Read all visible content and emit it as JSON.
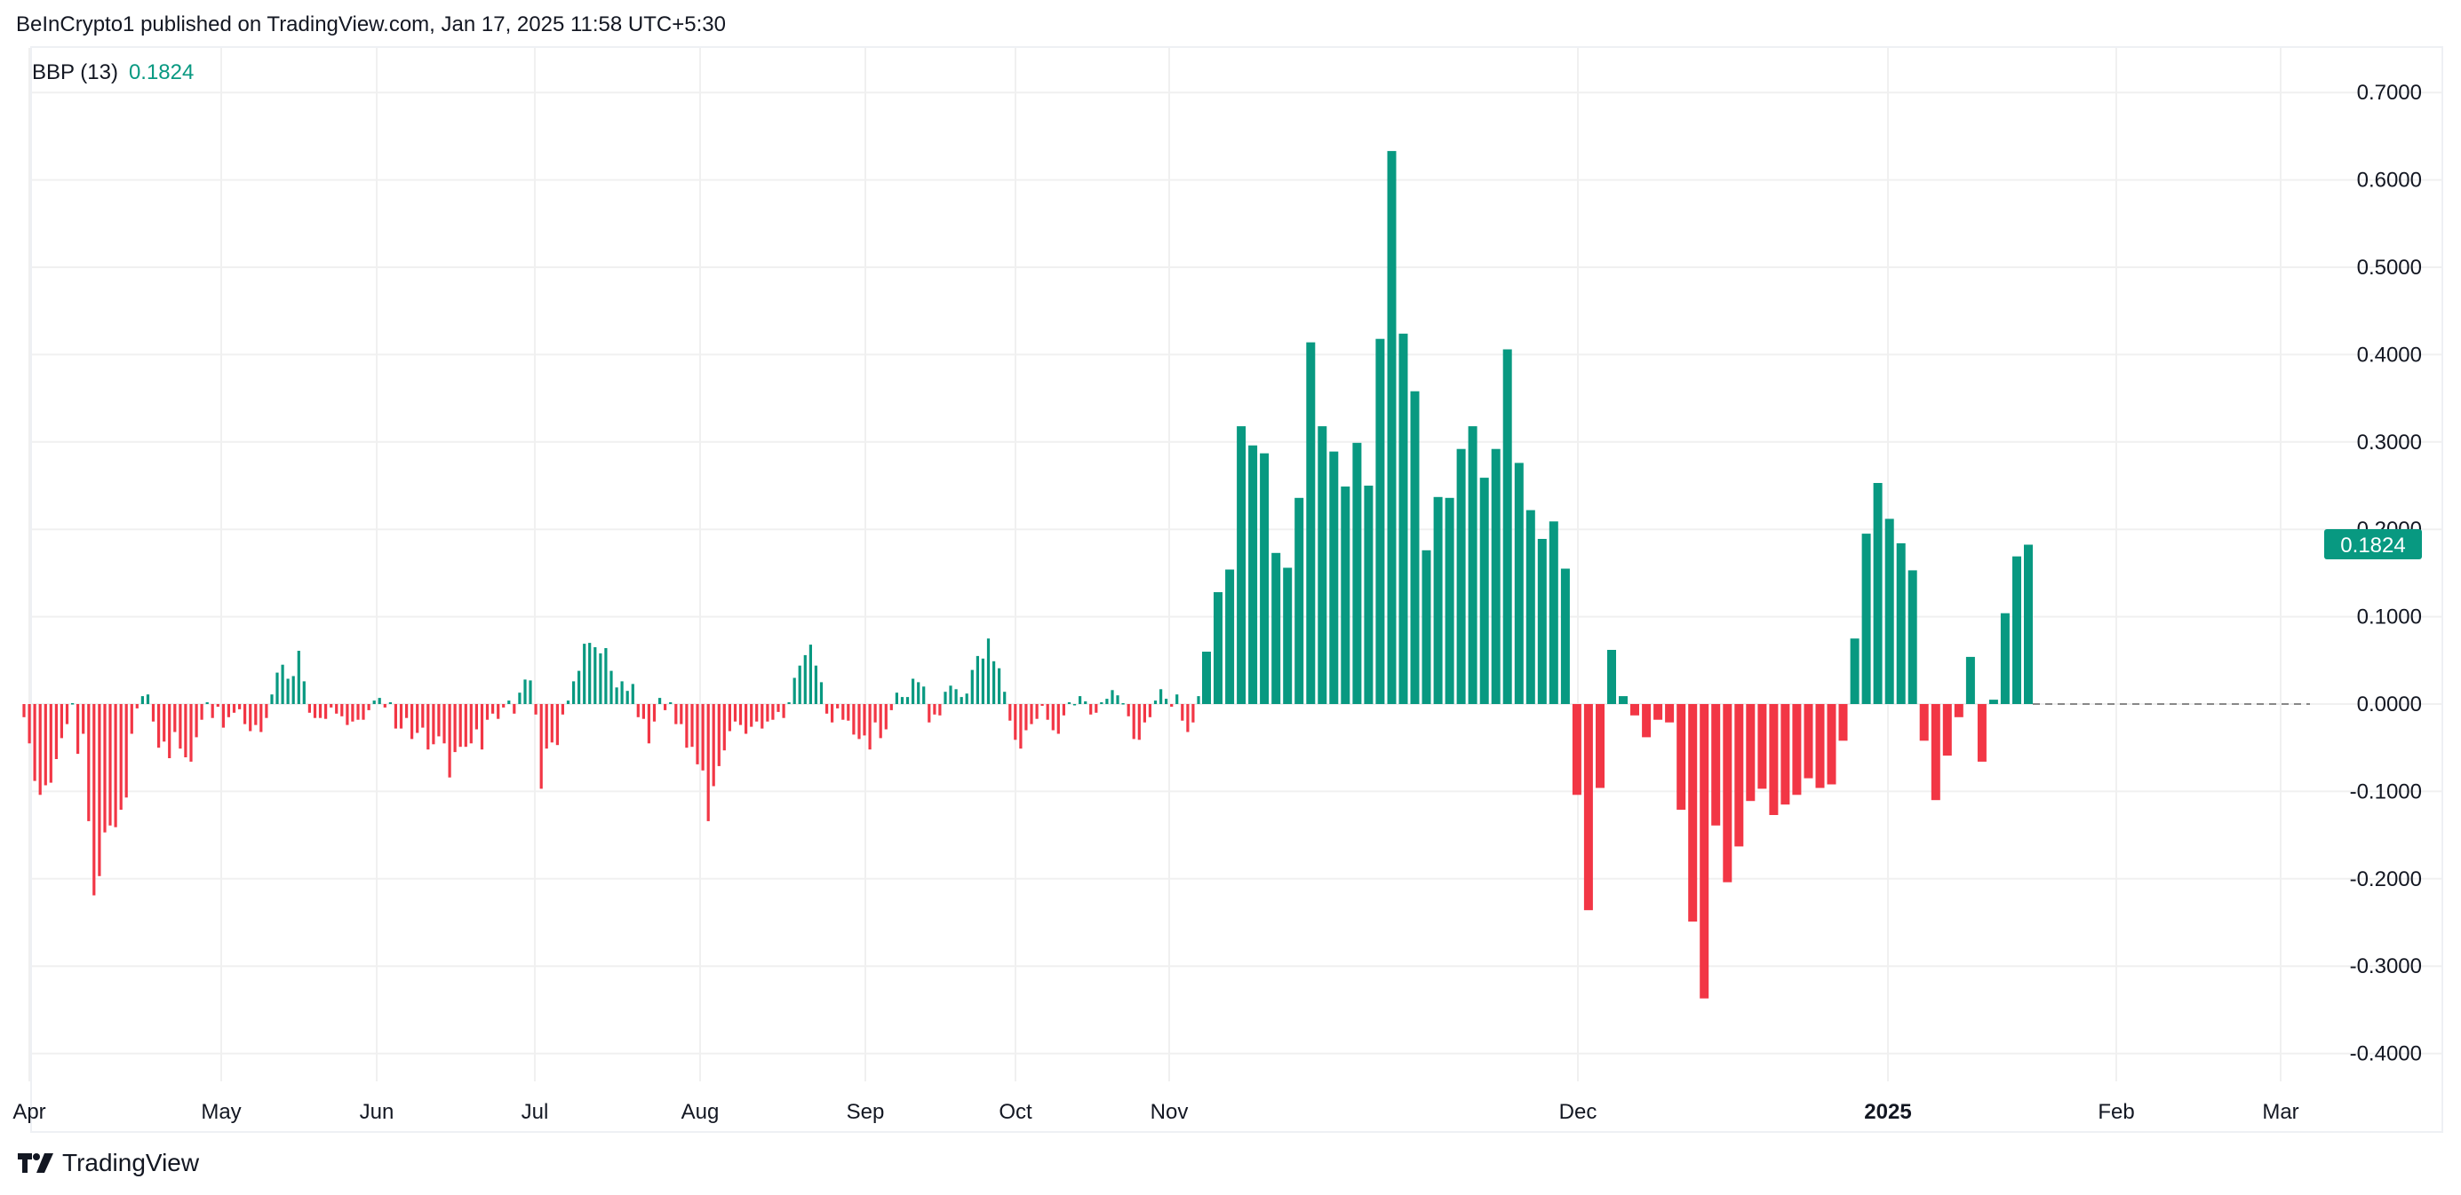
{
  "header": {
    "published": "BeInCrypto1 published on TradingView.com, Jan 17, 2025 11:58 UTC+5:30"
  },
  "legend": {
    "name": "BBP (13)",
    "value": "0.1824"
  },
  "footer": {
    "brand": "TradingView"
  },
  "colors": {
    "positive": "#089981",
    "negative": "#f23645",
    "grid": "#f0f0f0",
    "zero_line": "#888888"
  },
  "chart_data": {
    "type": "bar",
    "title": "",
    "series_label": "BBP (13)",
    "last_value": 0.1824,
    "last_value_label": "0.1824",
    "ylim": [
      -0.4,
      0.7
    ],
    "y_ticks": [
      "0.7000",
      "0.6000",
      "0.5000",
      "0.4000",
      "0.3000",
      "0.2000",
      "0.1000",
      "0.0000",
      "-0.1000",
      "-0.2000",
      "-0.3000",
      "-0.4000"
    ],
    "x_ticks": [
      "Apr",
      "May",
      "Jun",
      "Jul",
      "Aug",
      "Sep",
      "Oct",
      "Nov",
      "Dec",
      "2025",
      "Feb",
      "Mar"
    ],
    "grid": true,
    "values_apr_to_oct": [
      -0.015,
      -0.045,
      -0.088,
      -0.104,
      -0.093,
      -0.09,
      -0.063,
      -0.039,
      -0.023,
      0.001,
      -0.057,
      -0.034,
      -0.134,
      -0.219,
      -0.197,
      -0.147,
      -0.139,
      -0.141,
      -0.121,
      -0.107,
      -0.034,
      -0.005,
      0.009,
      0.011,
      -0.02,
      -0.05,
      -0.043,
      -0.062,
      -0.032,
      -0.051,
      -0.061,
      -0.066,
      -0.038,
      -0.018,
      0.002,
      -0.016,
      -0.003,
      -0.027,
      -0.015,
      -0.01,
      -0.006,
      -0.023,
      -0.031,
      -0.024,
      -0.032,
      -0.016,
      0.011,
      0.036,
      0.045,
      0.029,
      0.032,
      0.061,
      0.026,
      -0.01,
      -0.016,
      -0.016,
      -0.017,
      -0.004,
      -0.011,
      -0.014,
      -0.024,
      -0.02,
      -0.018,
      -0.018,
      -0.007,
      0.004,
      0.007,
      -0.004,
      0.002,
      -0.028,
      -0.028,
      -0.016,
      -0.04,
      -0.033,
      -0.027,
      -0.052,
      -0.046,
      -0.037,
      -0.045,
      -0.084,
      -0.055,
      -0.049,
      -0.049,
      -0.045,
      -0.029,
      -0.052,
      -0.018,
      -0.011,
      -0.017,
      -0.004,
      0.004,
      -0.011,
      0.013,
      0.028,
      0.027,
      -0.012,
      -0.097,
      -0.051,
      -0.044,
      -0.047,
      -0.012,
      0.004,
      0.026,
      0.038,
      0.069,
      0.07,
      0.065,
      0.058,
      0.064,
      0.038,
      0.019,
      0.026,
      0.015,
      0.023,
      -0.015,
      -0.017,
      -0.045,
      -0.02,
      0.007,
      -0.007,
      0.002,
      -0.023,
      -0.023,
      -0.05,
      -0.049,
      -0.069,
      -0.076,
      -0.134,
      -0.094,
      -0.071,
      -0.053,
      -0.031,
      -0.02,
      -0.024,
      -0.034,
      -0.026,
      -0.02,
      -0.028,
      -0.02,
      -0.018,
      -0.009,
      -0.016,
      0.002,
      0.03,
      0.044,
      0.056,
      0.068,
      0.044,
      0.025,
      -0.011,
      -0.021,
      -0.005,
      -0.018,
      -0.019,
      -0.035,
      -0.04,
      -0.036,
      -0.052,
      -0.021,
      -0.039,
      -0.029,
      -0.007,
      0.013,
      0.008,
      0.008,
      0.029,
      0.025,
      0.02,
      -0.021,
      -0.012,
      -0.013,
      0.014,
      0.021,
      0.017,
      0.008,
      0.012,
      0.039,
      0.055,
      0.052,
      0.075,
      0.049,
      0.041,
      0.014,
      -0.019,
      -0.041,
      -0.051,
      -0.03,
      -0.023,
      -0.017,
      -0.002,
      -0.018,
      -0.03,
      -0.034,
      -0.013,
      0.002,
      0,
      0.009,
      0.003,
      -0.012,
      -0.01,
      0.002,
      0.006,
      0.016,
      0.01,
      0.001,
      -0.014,
      -0.04,
      -0.041,
      -0.021,
      -0.015,
      0.004,
      0.017,
      0.006,
      -0.003,
      0.011,
      -0.019,
      -0.032,
      -0.021,
      0.009
    ],
    "values_nov_to_jan": [
      0.06,
      0.128,
      0.154,
      0.318,
      0.296,
      0.287,
      0.173,
      0.156,
      0.236,
      0.414,
      0.318,
      0.289,
      0.249,
      0.299,
      0.25,
      0.418,
      0.633,
      0.424,
      0.358,
      0.176,
      0.237,
      0.236,
      0.292,
      0.318,
      0.259,
      0.292,
      0.406,
      0.276,
      0.222,
      0.189,
      0.209,
      0.155,
      -0.104,
      -0.236,
      -0.096,
      0.062,
      0.009,
      -0.013,
      -0.038,
      -0.018,
      -0.021,
      -0.121,
      -0.249,
      -0.337,
      -0.139,
      -0.204,
      -0.163,
      -0.111,
      -0.097,
      -0.127,
      -0.115,
      -0.104,
      -0.085,
      -0.096,
      -0.092,
      -0.042,
      0.075,
      0.195,
      0.253,
      0.212,
      0.184,
      0.153,
      -0.042,
      -0.11,
      -0.059,
      -0.015,
      0.054,
      -0.066,
      0.005,
      0.104,
      0.169,
      0.1824
    ]
  }
}
